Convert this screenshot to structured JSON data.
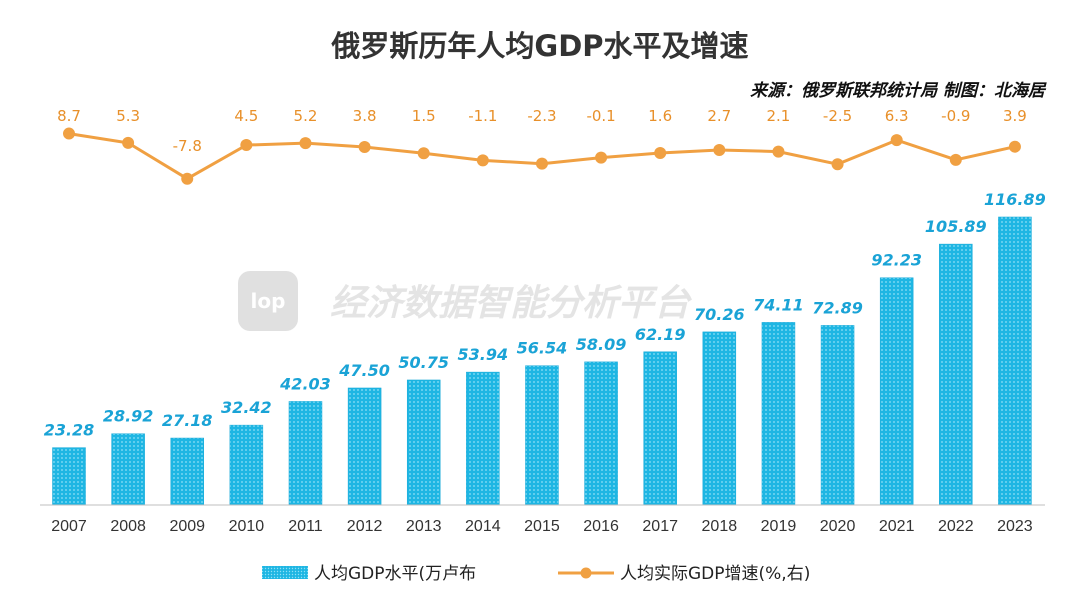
{
  "colors": {
    "bar": "#1eb6e3",
    "bar_dot": "#8fe0f7",
    "line": "#f0a042",
    "bar_label": "#1aa3d6",
    "growth_label": "#e8902a",
    "axis": "#bfbfbf"
  },
  "chart_data": {
    "type": "bar+line",
    "title": "俄罗斯历年人均GDP水平及增速",
    "source_note": "来源：俄罗斯联邦统计局  制图：北海居",
    "categories": [
      "2007",
      "2008",
      "2009",
      "2010",
      "2011",
      "2012",
      "2013",
      "2014",
      "2015",
      "2016",
      "2017",
      "2018",
      "2019",
      "2020",
      "2021",
      "2022",
      "2023"
    ],
    "series": [
      {
        "name": "人均GDP水平(万卢布",
        "type": "bar",
        "axis": "left",
        "values": [
          23.28,
          28.92,
          27.18,
          32.42,
          42.03,
          47.5,
          50.75,
          53.94,
          56.54,
          58.09,
          62.19,
          70.26,
          74.11,
          72.89,
          92.23,
          105.89,
          116.89
        ],
        "labels": [
          "23.28",
          "28.92",
          "27.18",
          "32.42",
          "42.03",
          "47.50",
          "50.75",
          "53.94",
          "56.54",
          "58.09",
          "62.19",
          "70.26",
          "74.11",
          "72.89",
          "92.23",
          "105.89",
          "116.89"
        ]
      },
      {
        "name": "人均实际GDP增速(%,右)",
        "type": "line",
        "axis": "right",
        "values": [
          8.7,
          5.3,
          -7.8,
          4.5,
          5.2,
          3.8,
          1.5,
          -1.1,
          -2.3,
          -0.1,
          1.6,
          2.7,
          2.1,
          -2.5,
          6.3,
          -0.9,
          3.9
        ],
        "labels": [
          "8.7",
          "5.3",
          "-7.8",
          "4.5",
          "5.2",
          "3.8",
          "1.5",
          "-1.1",
          "-2.3",
          "-0.1",
          "1.6",
          "2.7",
          "2.1",
          "-2.5",
          "6.3",
          "-0.9",
          "3.9"
        ]
      }
    ],
    "ylim_left": [
      0,
      125
    ],
    "ylim_right": [
      -9,
      10
    ],
    "legend": "bottom",
    "grid": false,
    "watermark": {
      "logo": "lop",
      "text": "经济数据智能分析平台"
    }
  }
}
